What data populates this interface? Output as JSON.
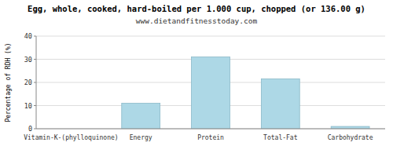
{
  "chart_data": {
    "type": "bar",
    "title": "Egg, whole, cooked, hard-boiled per 1.000 cup, chopped (or 136.00 g)",
    "subtitle": "www.dietandfitnesstoday.com",
    "categories": [
      "Vitamin-K-(phylloquinone)",
      "Energy",
      "Protein",
      "Total-Fat",
      "Carbohydrate"
    ],
    "values": [
      0,
      11,
      31,
      21.5,
      1
    ],
    "color": "#add8e6",
    "ylabel": "Percentage of RDH (%)",
    "ylim": [
      0,
      40
    ],
    "yticks": [
      0,
      10,
      20,
      30,
      40
    ],
    "grid": true
  }
}
